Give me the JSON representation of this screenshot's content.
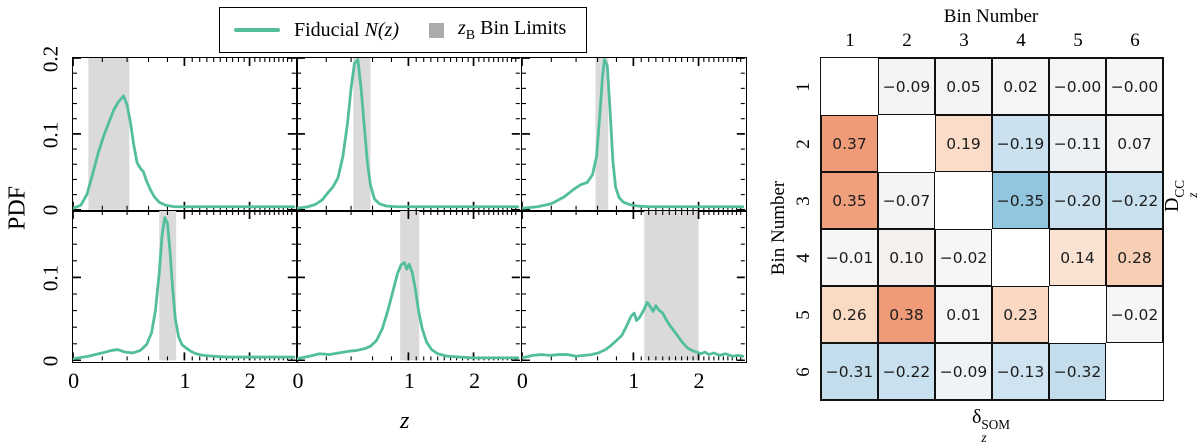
{
  "left_figure": {
    "ylabel": "PDF",
    "xlabel": "z",
    "legend": {
      "fiducial_prefix": "Fiducial ",
      "fiducial_math": "N(z)",
      "band_z": "z",
      "band_z_sub": "B",
      "band_suffix": " Bin Limits",
      "line_color": "#52BE9E",
      "swatch_color": "#ABABAB"
    }
  },
  "matrix_figure": {
    "top_axis_label": "Bin Number",
    "left_axis_label": "Bin Number",
    "right_label_parts": {
      "base": "D",
      "sub": "z",
      "sup": "CC"
    },
    "bottom_label_parts": {
      "base": "δ",
      "sub": "z",
      "sup": "SOM"
    }
  },
  "chart_data": [
    {
      "type": "line",
      "title": "Fiducial N(z) per tomographic bin",
      "xlabel": "z",
      "ylabel": "PDF",
      "x_scale": "log(1+z)",
      "xlim": [
        0,
        3
      ],
      "xticks": [
        0,
        1,
        2
      ],
      "x_minor_ticks": [
        0.2,
        0.4,
        0.6,
        0.8,
        1.1,
        1.2,
        1.3,
        1.4,
        1.5,
        1.6,
        1.7,
        1.8,
        1.9,
        2.1,
        2.2,
        2.3,
        2.4,
        2.5,
        2.6,
        2.7,
        2.8,
        2.9
      ],
      "rows": [
        {
          "ylim": [
            0,
            0.2
          ],
          "yticks": [
            0,
            0.1,
            0.2
          ],
          "y_minor_step": 0.02
        },
        {
          "ylim": [
            0,
            0.18
          ],
          "yticks": [
            0,
            0.1
          ],
          "y_minor_step": 0.02
        }
      ],
      "line_color": "#52BE9E",
      "band_color": "#DADADA",
      "legend": [
        "Fiducial N(z)",
        "zB Bin Limits"
      ],
      "panels": [
        {
          "bin": 1,
          "band": [
            0.1,
            0.42
          ],
          "points": [
            [
              0,
              0.002
            ],
            [
              0.05,
              0.006
            ],
            [
              0.09,
              0.02
            ],
            [
              0.13,
              0.047
            ],
            [
              0.17,
              0.075
            ],
            [
              0.21,
              0.097
            ],
            [
              0.25,
              0.115
            ],
            [
              0.29,
              0.132
            ],
            [
              0.33,
              0.143
            ],
            [
              0.37,
              0.15
            ],
            [
              0.4,
              0.138
            ],
            [
              0.43,
              0.115
            ],
            [
              0.46,
              0.085
            ],
            [
              0.49,
              0.062
            ],
            [
              0.52,
              0.055
            ],
            [
              0.55,
              0.05
            ],
            [
              0.58,
              0.038
            ],
            [
              0.62,
              0.026
            ],
            [
              0.66,
              0.017
            ],
            [
              0.71,
              0.01
            ],
            [
              0.78,
              0.006
            ],
            [
              0.88,
              0.004
            ],
            [
              1.0,
              0.004
            ],
            [
              1.2,
              0.004
            ],
            [
              1.5,
              0.004
            ],
            [
              1.8,
              0.004
            ],
            [
              2.2,
              0.004
            ],
            [
              2.6,
              0.004
            ],
            [
              2.95,
              0.004
            ]
          ]
        },
        {
          "bin": 2,
          "band": [
            0.42,
            0.58
          ],
          "points": [
            [
              0,
              0.002
            ],
            [
              0.07,
              0.004
            ],
            [
              0.12,
              0.007
            ],
            [
              0.17,
              0.013
            ],
            [
              0.21,
              0.022
            ],
            [
              0.25,
              0.03
            ],
            [
              0.29,
              0.042
            ],
            [
              0.33,
              0.07
            ],
            [
              0.37,
              0.115
            ],
            [
              0.4,
              0.16
            ],
            [
              0.43,
              0.193
            ],
            [
              0.46,
              0.198
            ],
            [
              0.49,
              0.16
            ],
            [
              0.52,
              0.11
            ],
            [
              0.55,
              0.062
            ],
            [
              0.58,
              0.032
            ],
            [
              0.62,
              0.014
            ],
            [
              0.67,
              0.008
            ],
            [
              0.74,
              0.005
            ],
            [
              0.85,
              0.004
            ],
            [
              1.0,
              0.004
            ],
            [
              1.25,
              0.004
            ],
            [
              1.6,
              0.004
            ],
            [
              2.0,
              0.004
            ],
            [
              2.5,
              0.004
            ],
            [
              2.95,
              0.004
            ]
          ]
        },
        {
          "bin": 3,
          "band": [
            0.58,
            0.71
          ],
          "points": [
            [
              0,
              0.002
            ],
            [
              0.1,
              0.004
            ],
            [
              0.2,
              0.008
            ],
            [
              0.3,
              0.017
            ],
            [
              0.38,
              0.027
            ],
            [
              0.44,
              0.033
            ],
            [
              0.5,
              0.036
            ],
            [
              0.55,
              0.046
            ],
            [
              0.59,
              0.07
            ],
            [
              0.62,
              0.12
            ],
            [
              0.65,
              0.175
            ],
            [
              0.67,
              0.198
            ],
            [
              0.7,
              0.19
            ],
            [
              0.73,
              0.13
            ],
            [
              0.76,
              0.065
            ],
            [
              0.79,
              0.03
            ],
            [
              0.83,
              0.016
            ],
            [
              0.88,
              0.01
            ],
            [
              0.95,
              0.007
            ],
            [
              1.05,
              0.005
            ],
            [
              1.2,
              0.004
            ],
            [
              1.5,
              0.004
            ],
            [
              1.9,
              0.004
            ],
            [
              2.3,
              0.004
            ],
            [
              2.7,
              0.004
            ],
            [
              2.95,
              0.004
            ]
          ]
        },
        {
          "bin": 4,
          "band": [
            0.71,
            0.9
          ],
          "points": [
            [
              0,
              0.002
            ],
            [
              0.1,
              0.005
            ],
            [
              0.2,
              0.009
            ],
            [
              0.27,
              0.012
            ],
            [
              0.32,
              0.013
            ],
            [
              0.38,
              0.01
            ],
            [
              0.45,
              0.009
            ],
            [
              0.52,
              0.012
            ],
            [
              0.58,
              0.019
            ],
            [
              0.63,
              0.033
            ],
            [
              0.67,
              0.06
            ],
            [
              0.71,
              0.105
            ],
            [
              0.74,
              0.15
            ],
            [
              0.77,
              0.172
            ],
            [
              0.8,
              0.165
            ],
            [
              0.83,
              0.13
            ],
            [
              0.86,
              0.085
            ],
            [
              0.89,
              0.05
            ],
            [
              0.93,
              0.028
            ],
            [
              0.97,
              0.019
            ],
            [
              1.02,
              0.015
            ],
            [
              1.08,
              0.011
            ],
            [
              1.15,
              0.008
            ],
            [
              1.25,
              0.006
            ],
            [
              1.4,
              0.005
            ],
            [
              1.6,
              0.004
            ],
            [
              1.9,
              0.004
            ],
            [
              2.3,
              0.004
            ],
            [
              2.7,
              0.004
            ],
            [
              2.95,
              0.004
            ]
          ]
        },
        {
          "bin": 5,
          "band": [
            0.9,
            1.14
          ],
          "points": [
            [
              0,
              0.002
            ],
            [
              0.08,
              0.005
            ],
            [
              0.15,
              0.008
            ],
            [
              0.22,
              0.007
            ],
            [
              0.3,
              0.009
            ],
            [
              0.38,
              0.011
            ],
            [
              0.45,
              0.012
            ],
            [
              0.52,
              0.014
            ],
            [
              0.58,
              0.017
            ],
            [
              0.64,
              0.024
            ],
            [
              0.7,
              0.038
            ],
            [
              0.76,
              0.06
            ],
            [
              0.82,
              0.085
            ],
            [
              0.87,
              0.105
            ],
            [
              0.91,
              0.115
            ],
            [
              0.95,
              0.118
            ],
            [
              0.98,
              0.11
            ],
            [
              1.01,
              0.116
            ],
            [
              1.05,
              0.105
            ],
            [
              1.09,
              0.085
            ],
            [
              1.13,
              0.06
            ],
            [
              1.18,
              0.038
            ],
            [
              1.24,
              0.022
            ],
            [
              1.31,
              0.013
            ],
            [
              1.4,
              0.008
            ],
            [
              1.55,
              0.005
            ],
            [
              1.75,
              0.004
            ],
            [
              2.0,
              0.003
            ],
            [
              2.3,
              0.003
            ],
            [
              2.65,
              0.003
            ],
            [
              2.95,
              0.003
            ]
          ]
        },
        {
          "bin": 6,
          "band": [
            1.14,
            2.0
          ],
          "points": [
            [
              0,
              0.003
            ],
            [
              0.07,
              0.006
            ],
            [
              0.13,
              0.007
            ],
            [
              0.19,
              0.006
            ],
            [
              0.26,
              0.007
            ],
            [
              0.33,
              0.007
            ],
            [
              0.4,
              0.005
            ],
            [
              0.47,
              0.006
            ],
            [
              0.54,
              0.007
            ],
            [
              0.61,
              0.009
            ],
            [
              0.68,
              0.013
            ],
            [
              0.74,
              0.018
            ],
            [
              0.8,
              0.024
            ],
            [
              0.86,
              0.03
            ],
            [
              0.92,
              0.042
            ],
            [
              0.97,
              0.053
            ],
            [
              1.01,
              0.057
            ],
            [
              1.04,
              0.048
            ],
            [
              1.08,
              0.052
            ],
            [
              1.13,
              0.06
            ],
            [
              1.18,
              0.07
            ],
            [
              1.22,
              0.065
            ],
            [
              1.26,
              0.059
            ],
            [
              1.3,
              0.066
            ],
            [
              1.34,
              0.061
            ],
            [
              1.4,
              0.057
            ],
            [
              1.46,
              0.048
            ],
            [
              1.52,
              0.041
            ],
            [
              1.58,
              0.035
            ],
            [
              1.65,
              0.028
            ],
            [
              1.72,
              0.021
            ],
            [
              1.8,
              0.015
            ],
            [
              1.88,
              0.012
            ],
            [
              1.96,
              0.01
            ],
            [
              2.05,
              0.008
            ],
            [
              2.12,
              0.01
            ],
            [
              2.2,
              0.007
            ],
            [
              2.3,
              0.009
            ],
            [
              2.42,
              0.006
            ],
            [
              2.55,
              0.008
            ],
            [
              2.7,
              0.005
            ],
            [
              2.85,
              0.006
            ],
            [
              2.95,
              0.005
            ]
          ]
        }
      ]
    },
    {
      "type": "heatmap",
      "title": "Correlation of delta_z^SOM with D_z^CC per bin pair",
      "top_axis_label": "Bin Number",
      "left_axis_label": "Bin Number",
      "right_label": "D_z^CC",
      "bottom_label": "delta_z^SOM",
      "col_labels": [
        "1",
        "2",
        "3",
        "4",
        "5",
        "6"
      ],
      "row_labels": [
        "1",
        "2",
        "3",
        "4",
        "5",
        "6"
      ],
      "values": [
        [
          null,
          -0.09,
          0.05,
          0.02,
          -0.0,
          -0.0
        ],
        [
          0.37,
          null,
          0.19,
          -0.19,
          -0.11,
          0.07
        ],
        [
          0.35,
          -0.07,
          null,
          -0.35,
          -0.2,
          -0.22
        ],
        [
          -0.01,
          0.1,
          -0.02,
          null,
          0.14,
          0.28
        ],
        [
          0.26,
          0.38,
          0.01,
          0.23,
          null,
          -0.02
        ],
        [
          -0.31,
          -0.22,
          -0.09,
          -0.13,
          -0.32,
          null
        ]
      ],
      "cell_text": [
        [
          "",
          "−0.09",
          "0.05",
          "0.02",
          "−0.00",
          "−0.00"
        ],
        [
          "0.37",
          "",
          "0.19",
          "−0.19",
          "−0.11",
          "0.07"
        ],
        [
          "0.35",
          "−0.07",
          "",
          "−0.35",
          "−0.20",
          "−0.22"
        ],
        [
          "−0.01",
          "0.10",
          "−0.02",
          "",
          "0.14",
          "0.28"
        ],
        [
          "0.26",
          "0.38",
          "0.01",
          "0.23",
          "",
          "−0.02"
        ],
        [
          "−0.31",
          "−0.22",
          "−0.09",
          "−0.13",
          "−0.32",
          ""
        ]
      ],
      "cell_colors": [
        [
          null,
          "#F4F4F4",
          "#F4F4F4",
          "#F5F5F5",
          "#F6F6F6",
          "#F6F6F6"
        ],
        [
          "#EF9B77",
          null,
          "#FADCC8",
          "#CBE1EF",
          "#EDF1F4",
          "#F4F4F4"
        ],
        [
          "#F0A07D",
          "#F4F4F4",
          null,
          "#92C5DE",
          "#CBE1EF",
          "#C9E0EE"
        ],
        [
          "#F6F6F6",
          "#F4F1EE",
          "#F6F6F6",
          null,
          "#FBE3D3",
          "#F8CFB4"
        ],
        [
          "#FADAC3",
          "#EF9B77",
          "#F5F5F5",
          "#FAD8C1",
          null,
          "#F6F6F6"
        ],
        [
          "#C4DDEC",
          "#C9E0EE",
          "#F0F3F5",
          "#CFE3F0",
          "#C4DDEC",
          null
        ]
      ]
    }
  ]
}
